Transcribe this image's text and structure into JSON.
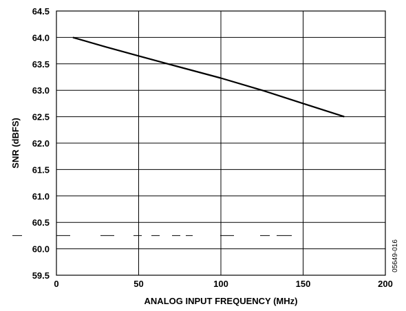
{
  "chart_data": {
    "type": "line",
    "title": "",
    "xlabel": "ANALOG INPUT FREQUENCY (MHz)",
    "ylabel": "SNR (dBFS)",
    "xlim": [
      0,
      200
    ],
    "ylim": [
      59.5,
      64.5
    ],
    "xticks": [
      0,
      50,
      100,
      150,
      200
    ],
    "xtick_labels": [
      "0",
      "50",
      "100",
      "150",
      "200"
    ],
    "yticks": [
      59.5,
      60.0,
      60.5,
      61.0,
      61.5,
      62.0,
      62.5,
      63.0,
      63.5,
      64.0,
      64.5
    ],
    "ytick_labels": [
      "59.5",
      "60.0",
      "60.5",
      "61.0",
      "61.5",
      "62.0",
      "62.5",
      "63.0",
      "63.5",
      "64.0",
      "64.5"
    ],
    "grid": true,
    "legend": "none",
    "series": [
      {
        "x": [
          10,
          30,
          50,
          70,
          100,
          125,
          150,
          175
        ],
        "y": [
          64.0,
          63.82,
          63.65,
          63.48,
          63.23,
          63.0,
          62.75,
          62.5
        ]
      }
    ],
    "figure_id": "05649-016"
  }
}
